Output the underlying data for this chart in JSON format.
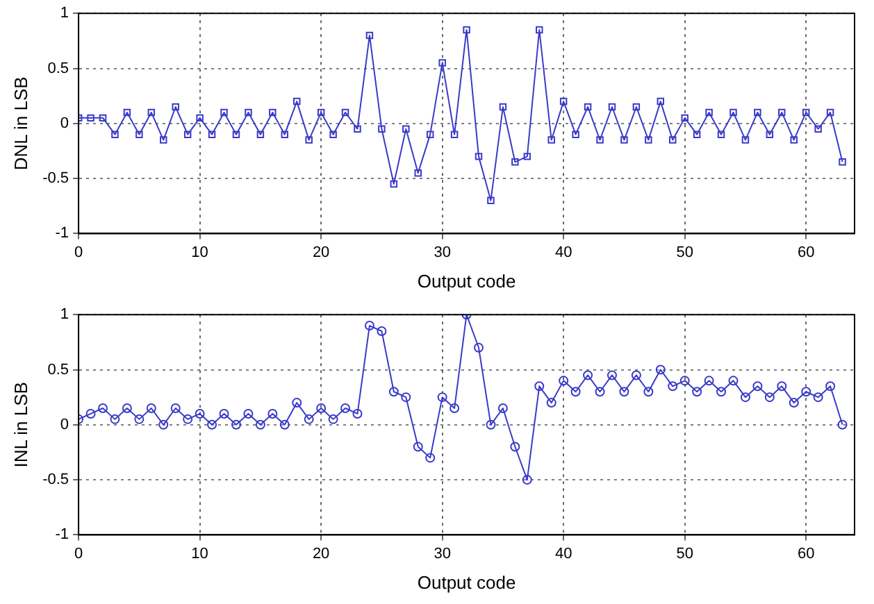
{
  "chart_data": [
    {
      "type": "line",
      "xlabel": "Output code",
      "ylabel": "DNL in LSB",
      "marker": "square",
      "line_style": "solid",
      "grid": true,
      "legend": false,
      "xlim": [
        0,
        64
      ],
      "xticks": [
        0,
        10,
        20,
        30,
        40,
        50,
        60
      ],
      "ylim": [
        -1,
        1
      ],
      "yticks": [
        -1,
        -0.5,
        0,
        0.5,
        1
      ],
      "x": [
        0,
        1,
        2,
        3,
        4,
        5,
        6,
        7,
        8,
        9,
        10,
        11,
        12,
        13,
        14,
        15,
        16,
        17,
        18,
        19,
        20,
        21,
        22,
        23,
        24,
        25,
        26,
        27,
        28,
        29,
        30,
        31,
        32,
        33,
        34,
        35,
        36,
        37,
        38,
        39,
        40,
        41,
        42,
        43,
        44,
        45,
        46,
        47,
        48,
        49,
        50,
        51,
        52,
        53,
        54,
        55,
        56,
        57,
        58,
        59,
        60,
        61,
        62,
        63
      ],
      "series": [
        {
          "color": "#3a3ac8",
          "values": [
            0.05,
            0.05,
            0.05,
            -0.1,
            0.1,
            -0.1,
            0.1,
            -0.15,
            0.15,
            -0.1,
            0.05,
            -0.1,
            0.1,
            -0.1,
            0.1,
            -0.1,
            0.1,
            -0.1,
            0.2,
            -0.15,
            0.1,
            -0.1,
            0.1,
            -0.05,
            0.8,
            -0.05,
            -0.55,
            -0.05,
            -0.45,
            -0.1,
            0.55,
            -0.1,
            0.85,
            -0.3,
            -0.7,
            0.15,
            -0.35,
            -0.3,
            0.85,
            -0.15,
            0.2,
            -0.1,
            0.15,
            -0.15,
            0.15,
            -0.15,
            0.15,
            -0.15,
            0.2,
            -0.15,
            0.05,
            -0.1,
            0.1,
            -0.1,
            0.1,
            -0.15,
            0.1,
            -0.1,
            0.1,
            -0.15,
            0.1,
            -0.05,
            0.1,
            -0.35
          ]
        }
      ]
    },
    {
      "type": "line",
      "xlabel": "Output code",
      "ylabel": "INL in LSB",
      "marker": "circle",
      "line_style": "solid",
      "grid": true,
      "legend": false,
      "xlim": [
        0,
        64
      ],
      "xticks": [
        0,
        10,
        20,
        30,
        40,
        50,
        60
      ],
      "ylim": [
        -1,
        1
      ],
      "yticks": [
        -1,
        -0.5,
        0,
        0.5,
        1
      ],
      "x": [
        0,
        1,
        2,
        3,
        4,
        5,
        6,
        7,
        8,
        9,
        10,
        11,
        12,
        13,
        14,
        15,
        16,
        17,
        18,
        19,
        20,
        21,
        22,
        23,
        24,
        25,
        26,
        27,
        28,
        29,
        30,
        31,
        32,
        33,
        34,
        35,
        36,
        37,
        38,
        39,
        40,
        41,
        42,
        43,
        44,
        45,
        46,
        47,
        48,
        49,
        50,
        51,
        52,
        53,
        54,
        55,
        56,
        57,
        58,
        59,
        60,
        61,
        62,
        63
      ],
      "series": [
        {
          "color": "#3a3ac8",
          "values": [
            0.05,
            0.1,
            0.15,
            0.05,
            0.15,
            0.05,
            0.15,
            0,
            0.15,
            0.05,
            0.1,
            0,
            0.1,
            0,
            0.1,
            0,
            0.1,
            0,
            0.2,
            0.05,
            0.15,
            0.05,
            0.15,
            0.1,
            0.9,
            0.85,
            0.3,
            0.25,
            -0.2,
            -0.3,
            0.25,
            0.15,
            1.0,
            0.7,
            0,
            0.15,
            -0.2,
            -0.5,
            0.35,
            0.2,
            0.4,
            0.3,
            0.45,
            0.3,
            0.45,
            0.3,
            0.45,
            0.3,
            0.5,
            0.35,
            0.4,
            0.3,
            0.4,
            0.3,
            0.4,
            0.25,
            0.35,
            0.25,
            0.35,
            0.2,
            0.3,
            0.25,
            0.35,
            0
          ]
        }
      ]
    }
  ]
}
